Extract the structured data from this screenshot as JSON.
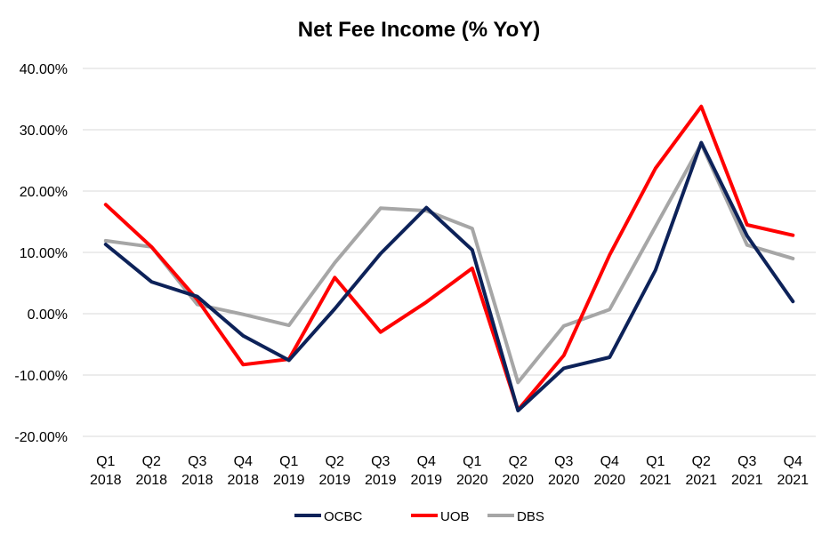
{
  "chart_data": {
    "type": "line",
    "title": "Net Fee Income (% YoY)",
    "xlabel": "",
    "ylabel": "",
    "ylim": [
      -20,
      40
    ],
    "yticks": [
      -20,
      -10,
      0,
      10,
      20,
      30,
      40
    ],
    "ytick_labels": [
      "-20.00%",
      "-10.00%",
      "0.00%",
      "10.00%",
      "20.00%",
      "30.00%",
      "40.00%"
    ],
    "grid": true,
    "legend_position": "bottom",
    "categories": [
      [
        "Q1",
        "2018"
      ],
      [
        "Q2",
        "2018"
      ],
      [
        "Q3",
        "2018"
      ],
      [
        "Q4",
        "2018"
      ],
      [
        "Q1",
        "2019"
      ],
      [
        "Q2",
        "2019"
      ],
      [
        "Q3",
        "2019"
      ],
      [
        "Q4",
        "2019"
      ],
      [
        "Q1",
        "2020"
      ],
      [
        "Q2",
        "2020"
      ],
      [
        "Q3",
        "2020"
      ],
      [
        "Q4",
        "2020"
      ],
      [
        "Q1",
        "2021"
      ],
      [
        "Q2",
        "2021"
      ],
      [
        "Q3",
        "2021"
      ],
      [
        "Q4",
        "2021"
      ]
    ],
    "series": [
      {
        "name": "OCBC",
        "color": "#0d2259",
        "values": [
          11.3,
          5.2,
          2.8,
          -3.6,
          -7.6,
          0.8,
          9.8,
          17.3,
          10.4,
          -15.8,
          -8.9,
          -7.1,
          7.1,
          27.9,
          12.7,
          2.0
        ]
      },
      {
        "name": "UOB",
        "color": "#ff0000",
        "values": [
          17.8,
          10.9,
          2.3,
          -8.3,
          -7.4,
          5.9,
          -3.0,
          1.9,
          7.4,
          -15.7,
          -6.8,
          9.6,
          23.7,
          33.8,
          14.5,
          12.8
        ]
      },
      {
        "name": "DBS",
        "color": "#a6a6a6",
        "values": [
          11.9,
          10.9,
          1.5,
          -0.1,
          -1.9,
          8.3,
          17.2,
          16.8,
          13.9,
          -11.2,
          -2.0,
          0.7,
          14.2,
          27.7,
          11.2,
          9.0
        ]
      }
    ]
  }
}
